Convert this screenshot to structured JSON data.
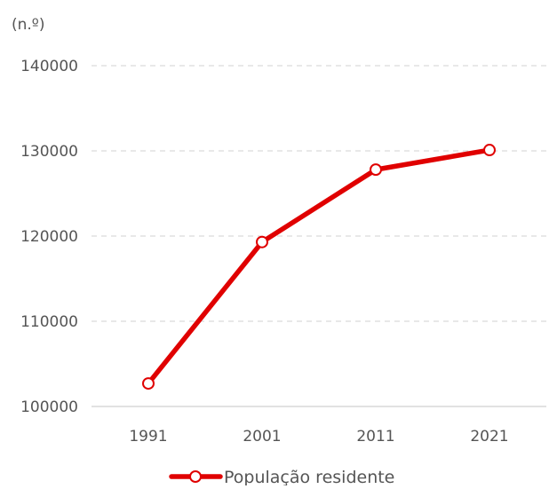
{
  "chart_data": {
    "type": "line",
    "title": "",
    "xlabel": "",
    "ylabel": "(n.º)",
    "categories": [
      "1991",
      "2001",
      "2011",
      "2021"
    ],
    "series": [
      {
        "name": "População residente",
        "values": [
          102700,
          119300,
          127800,
          130100
        ],
        "color": "#e00000",
        "marker": "circle-open"
      }
    ],
    "ylim": [
      100000,
      140000
    ],
    "yticks": [
      "100000",
      "110000",
      "120000",
      "130000",
      "140000"
    ],
    "grid": "horizontal-dashed",
    "legend_position": "bottom"
  }
}
